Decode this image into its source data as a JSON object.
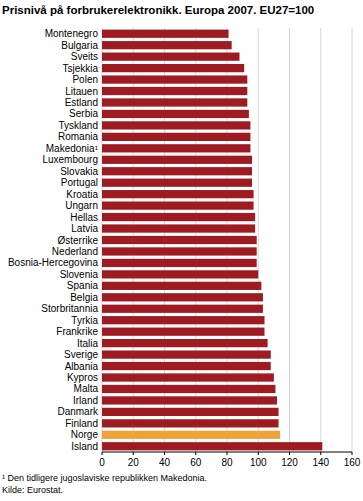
{
  "chart_data": {
    "type": "bar",
    "orientation": "horizontal",
    "title": "Prisnivå på forbrukerelektronikk. Europa 2007. EU27=100",
    "categories": [
      "Montenegro",
      "Bulgaria",
      "Sveits",
      "Tsjekkia",
      "Polen",
      "Litauen",
      "Estland",
      "Serbia",
      "Tyskland",
      "Romania",
      "Makedonia¹",
      "Luxembourg",
      "Slovakia",
      "Portugal",
      "Kroatia",
      "Ungarn",
      "Hellas",
      "Latvia",
      "Østerrike",
      "Nederland",
      "Bosnia-Hercegovina",
      "Slovenia",
      "Spania",
      "Belgia",
      "Storbritannia",
      "Tyrkia",
      "Frankrike",
      "Italia",
      "Sverige",
      "Albania",
      "Kypros",
      "Malta",
      "Irland",
      "Danmark",
      "Finland",
      "Norge",
      "Island"
    ],
    "values": [
      81,
      83,
      88,
      91,
      93,
      93,
      93,
      94,
      95,
      95,
      95,
      96,
      96,
      96,
      97,
      97,
      98,
      98,
      99,
      99,
      99,
      100,
      102,
      103,
      103,
      104,
      104,
      106,
      108,
      108,
      110,
      111,
      112,
      113,
      113,
      114,
      141
    ],
    "colors": [
      "#9e1b22",
      "#9e1b22",
      "#9e1b22",
      "#9e1b22",
      "#9e1b22",
      "#9e1b22",
      "#9e1b22",
      "#9e1b22",
      "#9e1b22",
      "#9e1b22",
      "#9e1b22",
      "#9e1b22",
      "#9e1b22",
      "#9e1b22",
      "#9e1b22",
      "#9e1b22",
      "#9e1b22",
      "#9e1b22",
      "#9e1b22",
      "#9e1b22",
      "#9e1b22",
      "#9e1b22",
      "#9e1b22",
      "#9e1b22",
      "#9e1b22",
      "#9e1b22",
      "#9e1b22",
      "#9e1b22",
      "#9e1b22",
      "#9e1b22",
      "#9e1b22",
      "#9e1b22",
      "#9e1b22",
      "#9e1b22",
      "#9e1b22",
      "#f0a23a",
      "#9e1b22"
    ],
    "xlim": [
      0,
      160
    ],
    "xticks": [
      0,
      20,
      40,
      60,
      80,
      100,
      120,
      140,
      160
    ],
    "grid": true,
    "annotations": [
      "¹ Den tidligere jugoslaviske republikken Makedonia.",
      "Kilde: Eurostat."
    ]
  }
}
